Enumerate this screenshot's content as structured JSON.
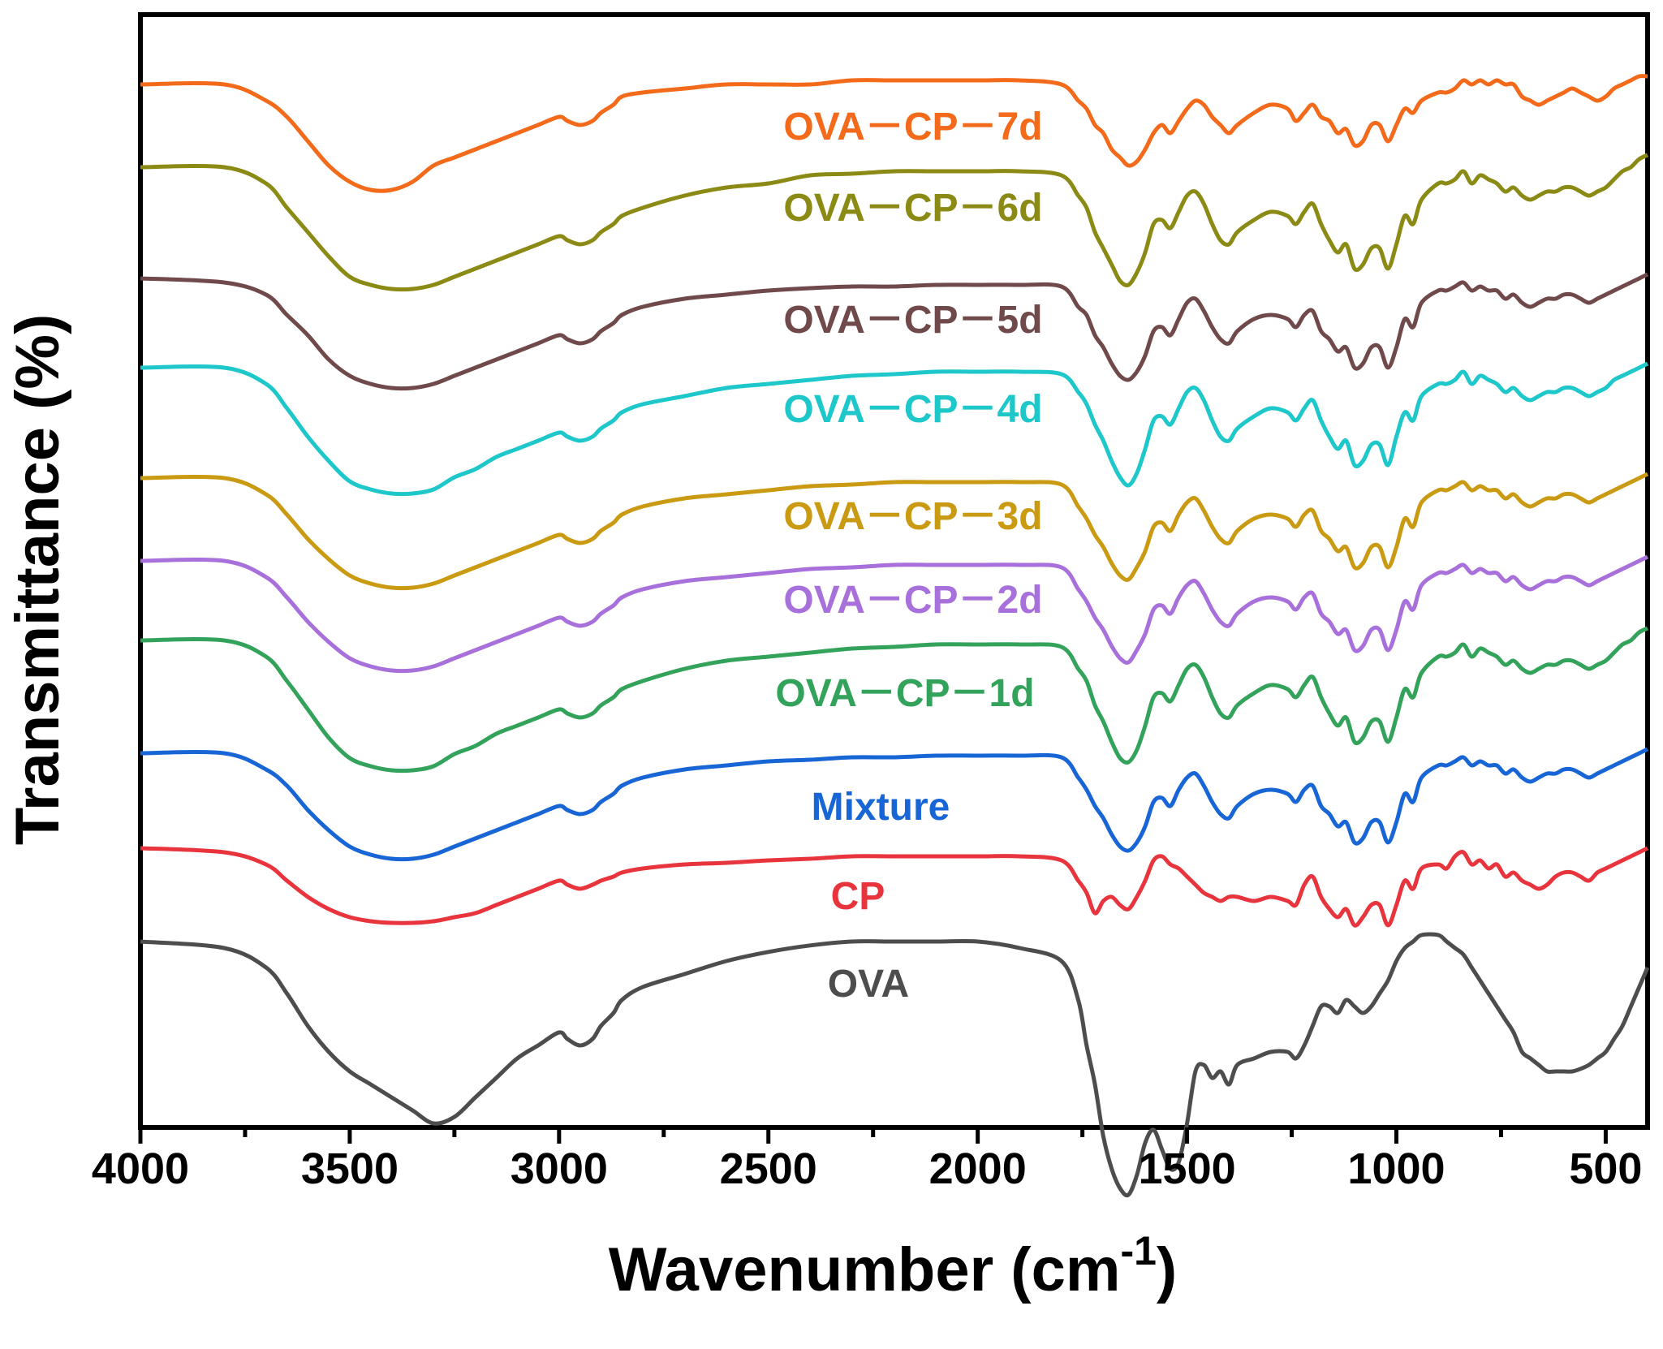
{
  "chart_data": {
    "type": "line",
    "title": "",
    "xlabel": "Wavenumber (cm",
    "xlabel_superscript": "-1",
    "xlabel_close": ")",
    "ylabel": "Transmittance (%)",
    "xlim": [
      4000,
      400
    ],
    "x_reversed": true,
    "x_ticks": [
      4000,
      3500,
      3000,
      2500,
      2000,
      1500,
      1000,
      500
    ],
    "x_tick_labels": [
      "4000",
      "3500",
      "3000",
      "2500",
      "2000",
      "1500",
      "1000",
      "500"
    ],
    "y_ticks_shown": false,
    "grid": false,
    "legend": "inline labels above each trace",
    "x": [
      4000,
      3800,
      3700,
      3650,
      3600,
      3550,
      3500,
      3450,
      3400,
      3350,
      3300,
      3250,
      3200,
      3150,
      3100,
      3050,
      3000,
      2980,
      2950,
      2920,
      2900,
      2870,
      2850,
      2800,
      2700,
      2600,
      2500,
      2400,
      2300,
      2200,
      2100,
      2000,
      1900,
      1800,
      1760,
      1740,
      1720,
      1700,
      1680,
      1660,
      1640,
      1620,
      1600,
      1580,
      1560,
      1540,
      1520,
      1500,
      1480,
      1460,
      1440,
      1420,
      1400,
      1380,
      1340,
      1300,
      1260,
      1240,
      1220,
      1200,
      1180,
      1160,
      1140,
      1120,
      1100,
      1080,
      1060,
      1040,
      1020,
      1000,
      980,
      960,
      940,
      900,
      880,
      860,
      840,
      820,
      800,
      780,
      760,
      740,
      720,
      700,
      680,
      660,
      640,
      620,
      600,
      580,
      560,
      540,
      520,
      500,
      480,
      460,
      440,
      420,
      400
    ],
    "series": [
      {
        "name": "OVA-CP-7d",
        "label": "OVA－CP－7d",
        "color": "#f46a1b",
        "values": [
          8.8,
          8.8,
          8.6,
          8.4,
          8.1,
          7.8,
          7.6,
          7.5,
          7.5,
          7.6,
          7.8,
          7.9,
          8.0,
          8.1,
          8.2,
          8.3,
          8.4,
          8.35,
          8.3,
          8.35,
          8.45,
          8.55,
          8.65,
          8.7,
          8.75,
          8.8,
          8.8,
          8.8,
          8.85,
          8.85,
          8.85,
          8.85,
          8.85,
          8.8,
          8.6,
          8.5,
          8.3,
          8.2,
          8.0,
          7.9,
          7.8,
          7.85,
          8.0,
          8.2,
          8.3,
          8.2,
          8.35,
          8.5,
          8.6,
          8.55,
          8.4,
          8.3,
          8.2,
          8.3,
          8.45,
          8.55,
          8.5,
          8.35,
          8.45,
          8.55,
          8.4,
          8.35,
          8.2,
          8.25,
          8.05,
          8.1,
          8.3,
          8.3,
          8.1,
          8.3,
          8.5,
          8.45,
          8.6,
          8.7,
          8.7,
          8.75,
          8.85,
          8.8,
          8.85,
          8.8,
          8.85,
          8.8,
          8.8,
          8.65,
          8.6,
          8.55,
          8.6,
          8.65,
          8.7,
          8.75,
          8.7,
          8.65,
          8.6,
          8.65,
          8.75,
          8.8,
          8.85,
          8.9,
          8.9
        ]
      },
      {
        "name": "OVA-CP-6d",
        "label": "OVA－CP－6d",
        "color": "#8a8a15",
        "values": [
          8.8,
          8.8,
          8.6,
          8.3,
          8.0,
          7.7,
          7.45,
          7.35,
          7.3,
          7.3,
          7.35,
          7.45,
          7.55,
          7.65,
          7.75,
          7.85,
          7.95,
          7.9,
          7.85,
          7.9,
          8.0,
          8.1,
          8.2,
          8.3,
          8.45,
          8.55,
          8.6,
          8.7,
          8.72,
          8.75,
          8.75,
          8.75,
          8.75,
          8.7,
          8.45,
          8.3,
          8.0,
          7.8,
          7.6,
          7.4,
          7.35,
          7.5,
          7.75,
          8.1,
          8.15,
          8.05,
          8.25,
          8.45,
          8.5,
          8.35,
          8.1,
          7.9,
          7.85,
          8.0,
          8.15,
          8.25,
          8.2,
          8.1,
          8.25,
          8.35,
          8.1,
          7.9,
          7.75,
          7.85,
          7.55,
          7.6,
          7.8,
          7.8,
          7.55,
          7.85,
          8.2,
          8.1,
          8.4,
          8.6,
          8.6,
          8.65,
          8.75,
          8.6,
          8.7,
          8.65,
          8.6,
          8.5,
          8.55,
          8.45,
          8.4,
          8.45,
          8.5,
          8.5,
          8.55,
          8.55,
          8.5,
          8.45,
          8.5,
          8.55,
          8.65,
          8.75,
          8.8,
          8.9,
          8.95
        ]
      },
      {
        "name": "OVA-CP-5d",
        "label": "OVA－CP－5d",
        "color": "#70494a",
        "values": [
          8.8,
          8.75,
          8.6,
          8.35,
          8.1,
          7.8,
          7.6,
          7.5,
          7.45,
          7.45,
          7.5,
          7.6,
          7.7,
          7.8,
          7.9,
          8.0,
          8.1,
          8.05,
          8.0,
          8.05,
          8.15,
          8.25,
          8.35,
          8.45,
          8.55,
          8.6,
          8.65,
          8.68,
          8.7,
          8.7,
          8.72,
          8.72,
          8.72,
          8.7,
          8.45,
          8.35,
          8.1,
          7.95,
          7.75,
          7.6,
          7.55,
          7.65,
          7.85,
          8.15,
          8.2,
          8.1,
          8.3,
          8.5,
          8.55,
          8.4,
          8.2,
          8.05,
          8.0,
          8.15,
          8.3,
          8.35,
          8.3,
          8.2,
          8.35,
          8.4,
          8.15,
          8.05,
          7.9,
          7.95,
          7.7,
          7.75,
          7.95,
          7.95,
          7.7,
          7.95,
          8.3,
          8.2,
          8.5,
          8.65,
          8.65,
          8.7,
          8.75,
          8.65,
          8.7,
          8.65,
          8.65,
          8.55,
          8.6,
          8.5,
          8.45,
          8.5,
          8.55,
          8.55,
          8.6,
          8.6,
          8.55,
          8.5,
          8.55,
          8.6,
          8.65,
          8.7,
          8.75,
          8.8,
          8.85
        ]
      },
      {
        "name": "OVA-CP-4d",
        "label": "OVA－CP－4d",
        "color": "#1ec7ca",
        "values": [
          8.8,
          8.8,
          8.6,
          8.3,
          7.95,
          7.65,
          7.4,
          7.3,
          7.25,
          7.25,
          7.3,
          7.45,
          7.55,
          7.7,
          7.8,
          7.9,
          8.0,
          7.95,
          7.9,
          7.95,
          8.05,
          8.15,
          8.25,
          8.35,
          8.45,
          8.55,
          8.6,
          8.65,
          8.7,
          8.72,
          8.75,
          8.75,
          8.75,
          8.72,
          8.5,
          8.35,
          8.1,
          7.9,
          7.65,
          7.45,
          7.35,
          7.5,
          7.8,
          8.15,
          8.2,
          8.1,
          8.3,
          8.5,
          8.55,
          8.4,
          8.15,
          7.95,
          7.9,
          8.05,
          8.2,
          8.3,
          8.25,
          8.15,
          8.3,
          8.4,
          8.15,
          7.95,
          7.8,
          7.9,
          7.6,
          7.65,
          7.85,
          7.85,
          7.6,
          7.95,
          8.25,
          8.15,
          8.45,
          8.6,
          8.6,
          8.65,
          8.75,
          8.6,
          8.7,
          8.65,
          8.6,
          8.5,
          8.55,
          8.45,
          8.4,
          8.45,
          8.5,
          8.5,
          8.55,
          8.55,
          8.5,
          8.45,
          8.5,
          8.55,
          8.65,
          8.7,
          8.75,
          8.8,
          8.85
        ]
      },
      {
        "name": "OVA-CP-3d",
        "label": "OVA－CP－3d",
        "color": "#c99a12",
        "values": [
          8.8,
          8.8,
          8.6,
          8.35,
          8.05,
          7.8,
          7.6,
          7.5,
          7.45,
          7.45,
          7.5,
          7.6,
          7.7,
          7.8,
          7.9,
          8.0,
          8.1,
          8.05,
          8.0,
          8.05,
          8.15,
          8.25,
          8.35,
          8.45,
          8.55,
          8.6,
          8.65,
          8.7,
          8.72,
          8.75,
          8.75,
          8.75,
          8.75,
          8.72,
          8.45,
          8.3,
          8.1,
          7.95,
          7.75,
          7.6,
          7.55,
          7.7,
          7.9,
          8.2,
          8.25,
          8.15,
          8.35,
          8.5,
          8.55,
          8.4,
          8.2,
          8.05,
          8.0,
          8.15,
          8.3,
          8.35,
          8.3,
          8.2,
          8.35,
          8.4,
          8.15,
          8.05,
          7.9,
          7.95,
          7.7,
          7.75,
          7.95,
          7.95,
          7.7,
          7.95,
          8.3,
          8.2,
          8.5,
          8.65,
          8.65,
          8.7,
          8.75,
          8.65,
          8.7,
          8.65,
          8.65,
          8.55,
          8.6,
          8.5,
          8.45,
          8.5,
          8.55,
          8.55,
          8.6,
          8.6,
          8.55,
          8.5,
          8.55,
          8.6,
          8.65,
          8.7,
          8.75,
          8.8,
          8.85
        ]
      },
      {
        "name": "OVA-CP-2d",
        "label": "OVA－CP－2d",
        "color": "#a870db",
        "values": [
          8.8,
          8.8,
          8.6,
          8.35,
          8.05,
          7.8,
          7.6,
          7.5,
          7.45,
          7.45,
          7.5,
          7.6,
          7.7,
          7.8,
          7.9,
          8.0,
          8.1,
          8.05,
          8.0,
          8.05,
          8.15,
          8.25,
          8.35,
          8.45,
          8.55,
          8.6,
          8.65,
          8.7,
          8.72,
          8.75,
          8.75,
          8.75,
          8.75,
          8.72,
          8.45,
          8.3,
          8.1,
          7.95,
          7.75,
          7.6,
          7.55,
          7.7,
          7.9,
          8.2,
          8.25,
          8.15,
          8.35,
          8.5,
          8.55,
          8.4,
          8.2,
          8.05,
          8.0,
          8.15,
          8.3,
          8.35,
          8.3,
          8.2,
          8.35,
          8.4,
          8.15,
          8.05,
          7.9,
          7.95,
          7.7,
          7.75,
          7.95,
          7.95,
          7.7,
          7.95,
          8.3,
          8.2,
          8.5,
          8.65,
          8.65,
          8.7,
          8.75,
          8.65,
          8.7,
          8.65,
          8.65,
          8.55,
          8.6,
          8.5,
          8.45,
          8.5,
          8.55,
          8.55,
          8.6,
          8.6,
          8.55,
          8.5,
          8.55,
          8.6,
          8.65,
          8.7,
          8.75,
          8.8,
          8.85
        ]
      },
      {
        "name": "OVA-CP-1d",
        "label": "OVA－CP－1d",
        "color": "#33a35b",
        "values": [
          8.8,
          8.8,
          8.6,
          8.3,
          7.95,
          7.6,
          7.35,
          7.25,
          7.2,
          7.2,
          7.25,
          7.4,
          7.5,
          7.65,
          7.75,
          7.85,
          7.95,
          7.9,
          7.85,
          7.9,
          8.0,
          8.1,
          8.2,
          8.3,
          8.45,
          8.55,
          8.6,
          8.65,
          8.7,
          8.72,
          8.75,
          8.75,
          8.75,
          8.72,
          8.45,
          8.3,
          8.0,
          7.8,
          7.55,
          7.35,
          7.3,
          7.45,
          7.75,
          8.1,
          8.15,
          8.05,
          8.25,
          8.45,
          8.5,
          8.35,
          8.1,
          7.9,
          7.85,
          8.0,
          8.15,
          8.25,
          8.2,
          8.1,
          8.25,
          8.35,
          8.1,
          7.9,
          7.75,
          7.85,
          7.55,
          7.6,
          7.8,
          7.8,
          7.55,
          7.85,
          8.2,
          8.1,
          8.4,
          8.6,
          8.6,
          8.65,
          8.75,
          8.6,
          8.7,
          8.65,
          8.6,
          8.5,
          8.55,
          8.45,
          8.4,
          8.45,
          8.5,
          8.5,
          8.55,
          8.55,
          8.5,
          8.45,
          8.5,
          8.55,
          8.65,
          8.75,
          8.8,
          8.9,
          8.95
        ]
      },
      {
        "name": "Mixture",
        "label": "Mixture",
        "color": "#1866d6",
        "values": [
          8.8,
          8.8,
          8.6,
          8.4,
          8.1,
          7.85,
          7.65,
          7.55,
          7.5,
          7.5,
          7.55,
          7.65,
          7.75,
          7.85,
          7.95,
          8.05,
          8.15,
          8.1,
          8.05,
          8.1,
          8.2,
          8.3,
          8.4,
          8.5,
          8.6,
          8.65,
          8.7,
          8.72,
          8.75,
          8.75,
          8.77,
          8.77,
          8.77,
          8.75,
          8.5,
          8.35,
          8.15,
          8.0,
          7.8,
          7.65,
          7.6,
          7.7,
          7.9,
          8.2,
          8.25,
          8.15,
          8.35,
          8.5,
          8.55,
          8.4,
          8.2,
          8.05,
          8.0,
          8.15,
          8.3,
          8.35,
          8.3,
          8.2,
          8.35,
          8.4,
          8.15,
          8.05,
          7.9,
          7.95,
          7.7,
          7.75,
          7.95,
          7.95,
          7.7,
          7.95,
          8.3,
          8.2,
          8.5,
          8.65,
          8.65,
          8.7,
          8.75,
          8.65,
          8.7,
          8.65,
          8.65,
          8.55,
          8.6,
          8.5,
          8.45,
          8.5,
          8.55,
          8.55,
          8.6,
          8.6,
          8.55,
          8.5,
          8.55,
          8.6,
          8.65,
          8.7,
          8.75,
          8.8,
          8.85
        ]
      },
      {
        "name": "CP",
        "label": "CP",
        "color": "#e8353d",
        "values": [
          8.8,
          8.75,
          8.6,
          8.4,
          8.2,
          8.05,
          7.95,
          7.9,
          7.88,
          7.88,
          7.9,
          7.95,
          8.0,
          8.1,
          8.2,
          8.3,
          8.4,
          8.35,
          8.3,
          8.35,
          8.4,
          8.45,
          8.5,
          8.55,
          8.6,
          8.62,
          8.65,
          8.67,
          8.7,
          8.7,
          8.7,
          8.7,
          8.7,
          8.65,
          8.4,
          8.25,
          8.0,
          8.15,
          8.2,
          8.1,
          8.05,
          8.2,
          8.4,
          8.65,
          8.7,
          8.6,
          8.55,
          8.45,
          8.35,
          8.25,
          8.2,
          8.15,
          8.2,
          8.2,
          8.15,
          8.2,
          8.15,
          8.1,
          8.35,
          8.45,
          8.2,
          8.05,
          7.95,
          8.05,
          7.85,
          7.95,
          8.1,
          8.1,
          7.85,
          8.1,
          8.4,
          8.3,
          8.55,
          8.6,
          8.55,
          8.7,
          8.75,
          8.6,
          8.65,
          8.55,
          8.6,
          8.45,
          8.5,
          8.4,
          8.35,
          8.3,
          8.35,
          8.45,
          8.5,
          8.5,
          8.45,
          8.4,
          8.5,
          8.55,
          8.6,
          8.65,
          8.7,
          8.75,
          8.8
        ]
      },
      {
        "name": "OVA",
        "label": "OVA",
        "color": "#4d4d4d",
        "values": [
          8.8,
          8.75,
          8.6,
          8.4,
          8.15,
          7.95,
          7.8,
          7.7,
          7.6,
          7.5,
          7.4,
          7.45,
          7.6,
          7.75,
          7.9,
          8.0,
          8.1,
          8.05,
          8.0,
          8.05,
          8.15,
          8.25,
          8.35,
          8.45,
          8.55,
          8.65,
          8.72,
          8.77,
          8.8,
          8.8,
          8.8,
          8.8,
          8.75,
          8.65,
          8.35,
          8.0,
          7.7,
          7.3,
          7.05,
          6.9,
          6.85,
          7.0,
          7.25,
          7.35,
          7.2,
          7.05,
          7.1,
          7.4,
          7.8,
          7.85,
          7.75,
          7.8,
          7.7,
          7.85,
          7.9,
          7.95,
          7.95,
          7.9,
          8.0,
          8.15,
          8.3,
          8.3,
          8.25,
          8.35,
          8.3,
          8.25,
          8.3,
          8.4,
          8.5,
          8.65,
          8.75,
          8.8,
          8.85,
          8.85,
          8.8,
          8.75,
          8.7,
          8.6,
          8.5,
          8.4,
          8.3,
          8.2,
          8.1,
          7.95,
          7.9,
          7.85,
          7.8,
          7.8,
          7.8,
          7.8,
          7.82,
          7.85,
          7.9,
          7.95,
          8.05,
          8.15,
          8.3,
          8.45,
          8.6
        ]
      }
    ]
  }
}
